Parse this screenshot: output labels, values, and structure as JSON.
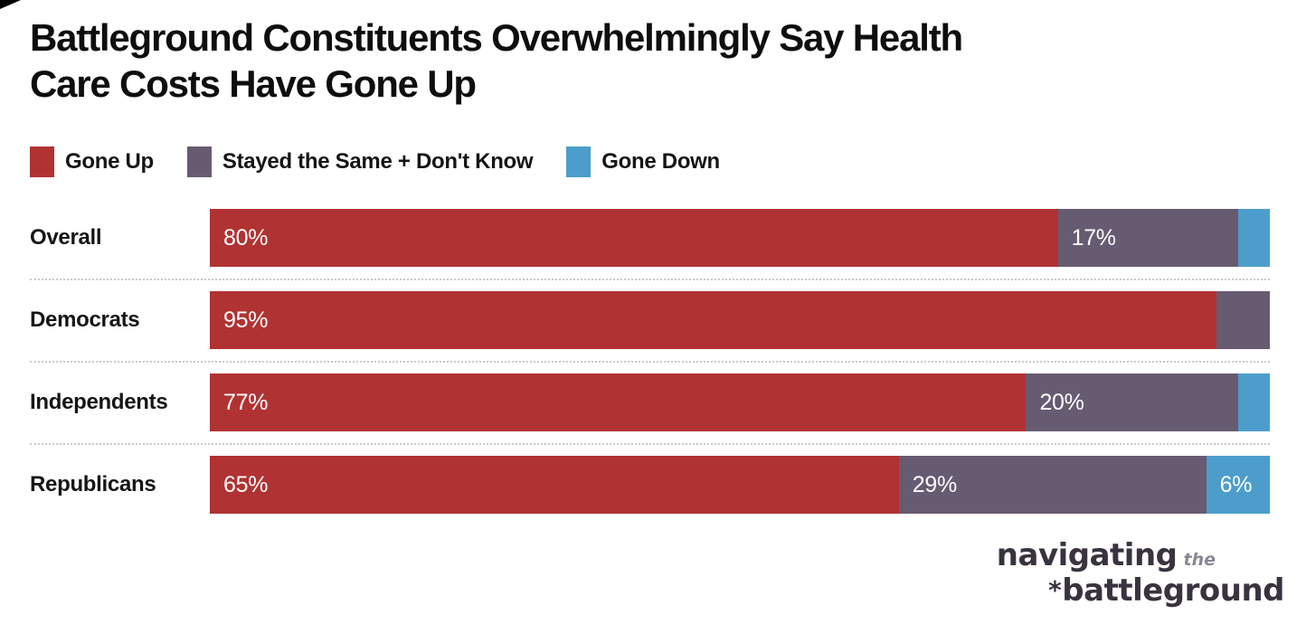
{
  "chart_data": {
    "type": "bar",
    "subtype": "stacked-horizontal",
    "title": "Battleground Constituents Overwhelmingly Say Health Care Costs Have Gone Up",
    "title_lines": [
      "Battleground Constituents Overwhelmingly Say Health",
      "Care Costs Have Gone Up"
    ],
    "categories": [
      "Overall",
      "Democrats",
      "Independents",
      "Republicans"
    ],
    "series": [
      {
        "name": "Gone Up",
        "color": "#b13232",
        "values": [
          80,
          95,
          77,
          65
        ],
        "labels": [
          "80%",
          "95%",
          "77%",
          "65%"
        ]
      },
      {
        "name": "Stayed the Same + Don't Know",
        "color": "#675b72",
        "values": [
          17,
          5,
          20,
          29
        ],
        "labels": [
          "17%",
          "",
          "20%",
          "29%"
        ]
      },
      {
        "name": "Gone Down",
        "color": "#4c9dcb",
        "values": [
          3,
          0,
          3,
          6
        ],
        "labels": [
          "",
          "",
          "",
          "6%"
        ]
      }
    ],
    "xlim": [
      0,
      100
    ],
    "unit": "%",
    "legend_position": "top",
    "value_label_color": "#ffffff",
    "separator_style": "dotted",
    "separator_color": "#c9c9c9"
  },
  "logo": {
    "word1": "navigating",
    "word2": "the",
    "star": "*",
    "word3": "battleground",
    "main_color": "#39333f",
    "accent_color": "#8a8694"
  }
}
